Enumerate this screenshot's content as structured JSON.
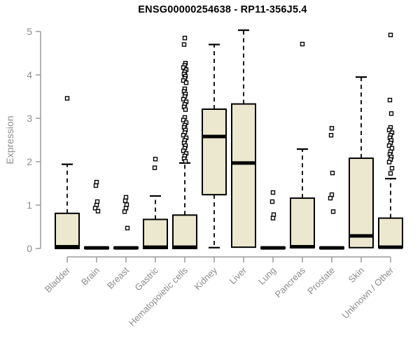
{
  "chart_data": {
    "type": "boxplot",
    "title": "ENSG00000254638 - RP11-356J5.4",
    "ylabel": "Expression",
    "xlabel": "",
    "ylim": [
      0,
      5
    ],
    "yticks": [
      0,
      1,
      2,
      3,
      4,
      5
    ],
    "grid": false,
    "legend": false,
    "categories": [
      "Bladder",
      "Brain",
      "Breast",
      "Gastric",
      "Hematopoietic cells",
      "Kidney",
      "Liver",
      "Lung",
      "Pancreas",
      "Prostate",
      "Skin",
      "Unknown / Other"
    ],
    "boxes": [
      {
        "category": "Bladder",
        "q1": 0,
        "median": 0.04,
        "q3": 0.81,
        "whisker_low": 0,
        "whisker_high": 1.94,
        "outliers": [
          3.46
        ]
      },
      {
        "category": "Brain",
        "q1": 0,
        "median": 0.015,
        "q3": 0.03,
        "whisker_low": 0,
        "whisker_high": 0.03,
        "outliers": [
          1.53,
          1.45,
          1.08,
          1.0,
          0.93,
          0.86
        ]
      },
      {
        "category": "Breast",
        "q1": 0,
        "median": 0.015,
        "q3": 0.03,
        "whisker_low": 0,
        "whisker_high": 0.03,
        "outliers": [
          1.18,
          1.1,
          1.01,
          0.93,
          0.85,
          0.47
        ]
      },
      {
        "category": "Gastric",
        "q1": 0,
        "median": 0.03,
        "q3": 0.67,
        "whisker_low": 0,
        "whisker_high": 1.21,
        "outliers": [
          2.06,
          1.86
        ]
      },
      {
        "category": "Hematopoietic cells",
        "q1": 0,
        "median": 0.03,
        "q3": 0.77,
        "whisker_low": 0,
        "whisker_high": 1.97,
        "outliers": [
          4.85,
          4.7,
          4.27,
          4.22,
          4.17,
          4.12,
          4.07,
          4.02,
          3.97,
          3.92,
          3.87,
          3.82,
          3.68,
          3.62,
          3.56,
          3.5,
          3.44,
          3.38,
          3.32,
          3.26,
          3.2,
          3.02,
          2.96,
          2.9,
          2.84,
          2.79,
          2.73,
          2.67,
          2.61,
          2.55,
          2.49,
          2.43,
          2.37,
          2.31,
          2.25,
          2.19,
          2.13,
          2.07,
          2.01
        ]
      },
      {
        "category": "Kidney",
        "q1": 1.24,
        "median": 2.58,
        "q3": 3.21,
        "whisker_low": 0.02,
        "whisker_high": 4.7,
        "outliers": []
      },
      {
        "category": "Liver",
        "q1": 0.03,
        "median": 1.97,
        "q3": 3.33,
        "whisker_low": 0.03,
        "whisker_high": 5.03,
        "outliers": []
      },
      {
        "category": "Lung",
        "q1": 0,
        "median": 0.015,
        "q3": 0.03,
        "whisker_low": 0,
        "whisker_high": 0.03,
        "outliers": [
          1.29,
          1.08,
          0.78,
          0.7
        ]
      },
      {
        "category": "Pancreas",
        "q1": 0.02,
        "median": 0.04,
        "q3": 1.16,
        "whisker_low": 0.02,
        "whisker_high": 2.29,
        "outliers": [
          4.71
        ]
      },
      {
        "category": "Prostate",
        "q1": 0,
        "median": 0.015,
        "q3": 0.03,
        "whisker_low": 0,
        "whisker_high": 0.03,
        "outliers": [
          2.77,
          2.61,
          1.74,
          1.24,
          1.16,
          0.85
        ]
      },
      {
        "category": "Skin",
        "q1": 0.02,
        "median": 0.29,
        "q3": 2.08,
        "whisker_low": 0.02,
        "whisker_high": 3.95,
        "outliers": []
      },
      {
        "category": "Unknown / Other",
        "q1": 0.02,
        "median": 0.03,
        "q3": 0.7,
        "whisker_low": 0.02,
        "whisker_high": 1.61,
        "outliers": [
          4.92,
          3.42,
          3.11,
          2.79,
          2.73,
          2.67,
          2.61,
          2.55,
          2.49,
          2.43,
          2.37,
          2.31,
          2.23,
          2.17,
          2.11,
          2.05,
          1.99,
          1.85,
          1.73
        ]
      }
    ],
    "colors": {
      "box_fill": "#ece8cf",
      "box_stroke": "#000000",
      "median": "#000000",
      "whisker": "#000000",
      "outlier_stroke": "#000000",
      "outlier_fill": "#ffffff",
      "axis": "#9a9a9a",
      "tick_label": "#8c8c8c",
      "title": "#000000"
    }
  }
}
